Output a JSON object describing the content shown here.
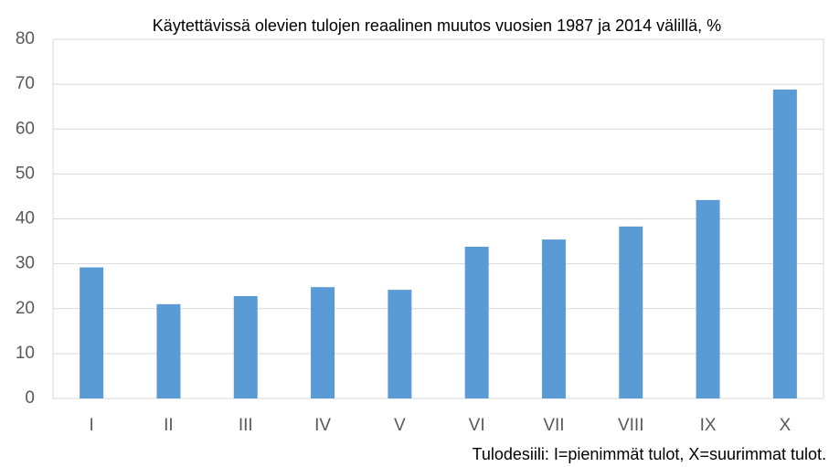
{
  "chart_data": {
    "type": "bar",
    "title": "Käytettävissä olevien tulojen reaalinen muutos vuosien 1987 ja 2014 välillä, %",
    "x_label": "Tulodesiili: I=pienimmät tulot, X=suurimmat tulot.",
    "categories": [
      "I",
      "II",
      "III",
      "IV",
      "V",
      "VI",
      "VII",
      "VIII",
      "IX",
      "X"
    ],
    "values": [
      29.2,
      21.0,
      22.8,
      24.8,
      24.2,
      33.8,
      35.4,
      38.3,
      44.2,
      68.8
    ],
    "color": "#5b9bd5",
    "ylim": [
      0,
      80
    ],
    "yticks": [
      0,
      10,
      20,
      30,
      40,
      50,
      60,
      70,
      80
    ],
    "grid": true
  }
}
